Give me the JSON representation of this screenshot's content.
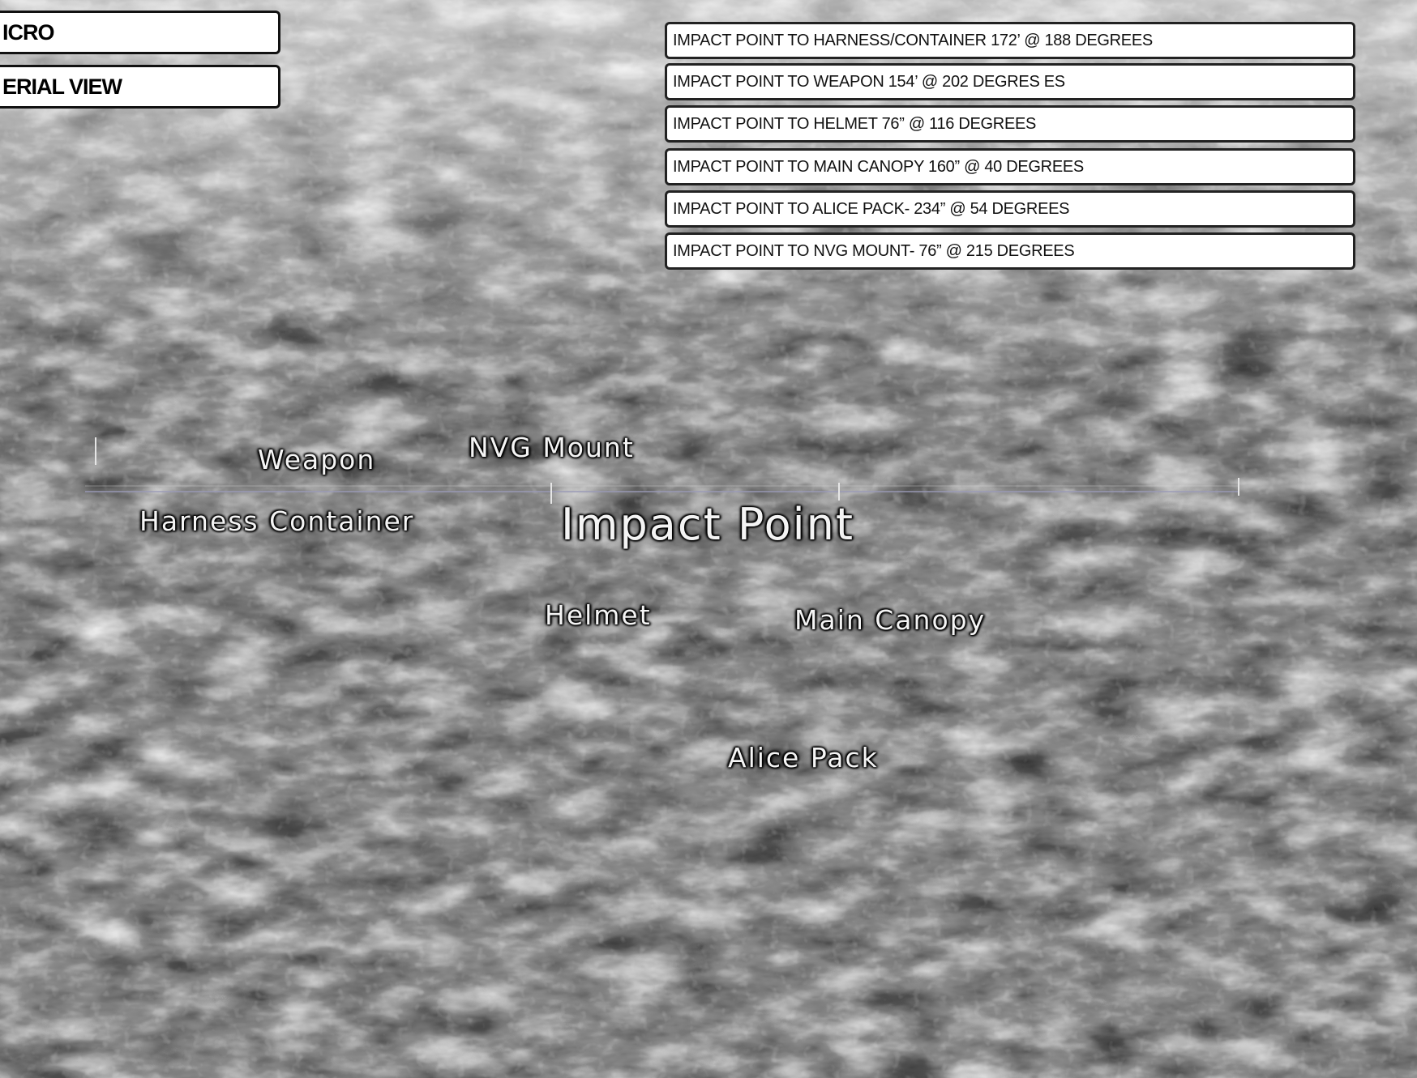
{
  "header_tabs": {
    "micro": "ICRO",
    "aerial": "ERIAL VIEW"
  },
  "legend": [
    "IMPACT POINT TO HARNESS/CONTAINER  172’ @ 188 DEGREES",
    "IMPACT POINT TO WEAPON  154’  @ 202 DEGRES ES",
    "IMPACT POINT TO HELMET  76” @ 116 DEGREES",
    "IMPACT POINT TO  MAIN CANOPY  160” @ 40 DEGREES",
    "IMPACT POINT TO ALICE PACK- 234” @ 54 DEGREES",
    "IMPACT POINT TO NVG MOUNT- 76” @ 215 DEGREES"
  ],
  "map_labels": {
    "weapon": "Weapon",
    "nvg_mount": "NVG Mount",
    "harness_container": "Harness Container",
    "impact_point": "Impact Point",
    "helmet": "Helmet",
    "main_canopy": "Main Canopy",
    "alice_pack": "Alice Pack"
  },
  "colors": {
    "foliage_dark": "#0d0d0d",
    "foliage_light": "#e8e8e8",
    "label_text": "#f4f4f4",
    "panel_bg": "#ffffff"
  }
}
